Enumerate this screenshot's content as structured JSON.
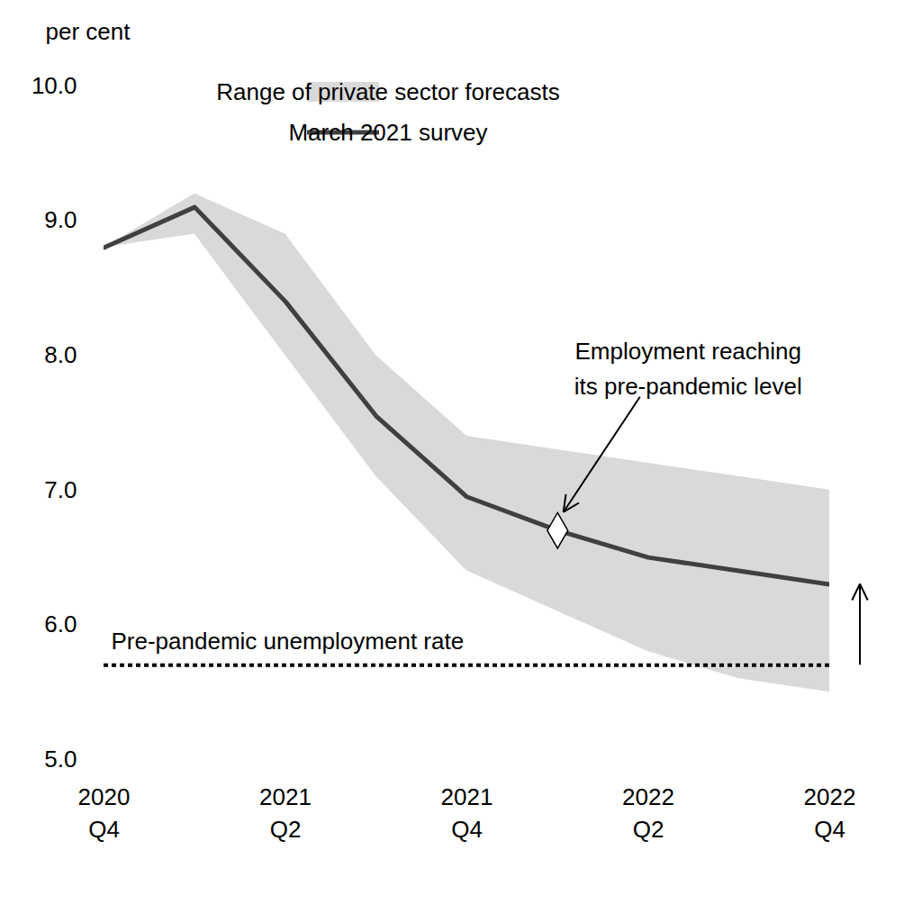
{
  "chart_data": {
    "type": "line",
    "y_label": "per cent",
    "categories": [
      "2020\nQ4",
      null,
      "2021\nQ2",
      null,
      "2021\nQ4",
      null,
      "2022\nQ2",
      null,
      "2022\nQ4"
    ],
    "series": [
      {
        "name": "Range of private sector forecasts",
        "type": "area",
        "color": "#d9d9d9",
        "lower": [
          8.8,
          8.9,
          8.0,
          7.1,
          6.4,
          6.1,
          5.8,
          5.6,
          5.5
        ],
        "upper": [
          8.8,
          9.2,
          8.9,
          8.0,
          7.4,
          7.3,
          7.2,
          7.1,
          7.0
        ]
      },
      {
        "name": "March 2021 survey",
        "type": "line",
        "color": "#404040",
        "values": [
          8.8,
          9.1,
          8.4,
          7.55,
          6.95,
          6.7,
          6.5,
          6.4,
          6.3
        ]
      }
    ],
    "annotations": [
      {
        "text": "Employment reaching\nits pre-pandemic level",
        "marker": "diamond",
        "values": [
          null,
          null,
          null,
          null,
          null,
          6.7,
          null,
          null,
          null
        ]
      }
    ],
    "reference_lines": [
      {
        "label": "Pre-pandemic unemployment rate",
        "value": 5.7,
        "line_style": "dotted",
        "color": "#000000"
      }
    ],
    "ylim": [
      5,
      10
    ],
    "yticks": [
      5,
      6,
      7,
      8,
      9,
      10
    ],
    "legend": "top-right"
  }
}
